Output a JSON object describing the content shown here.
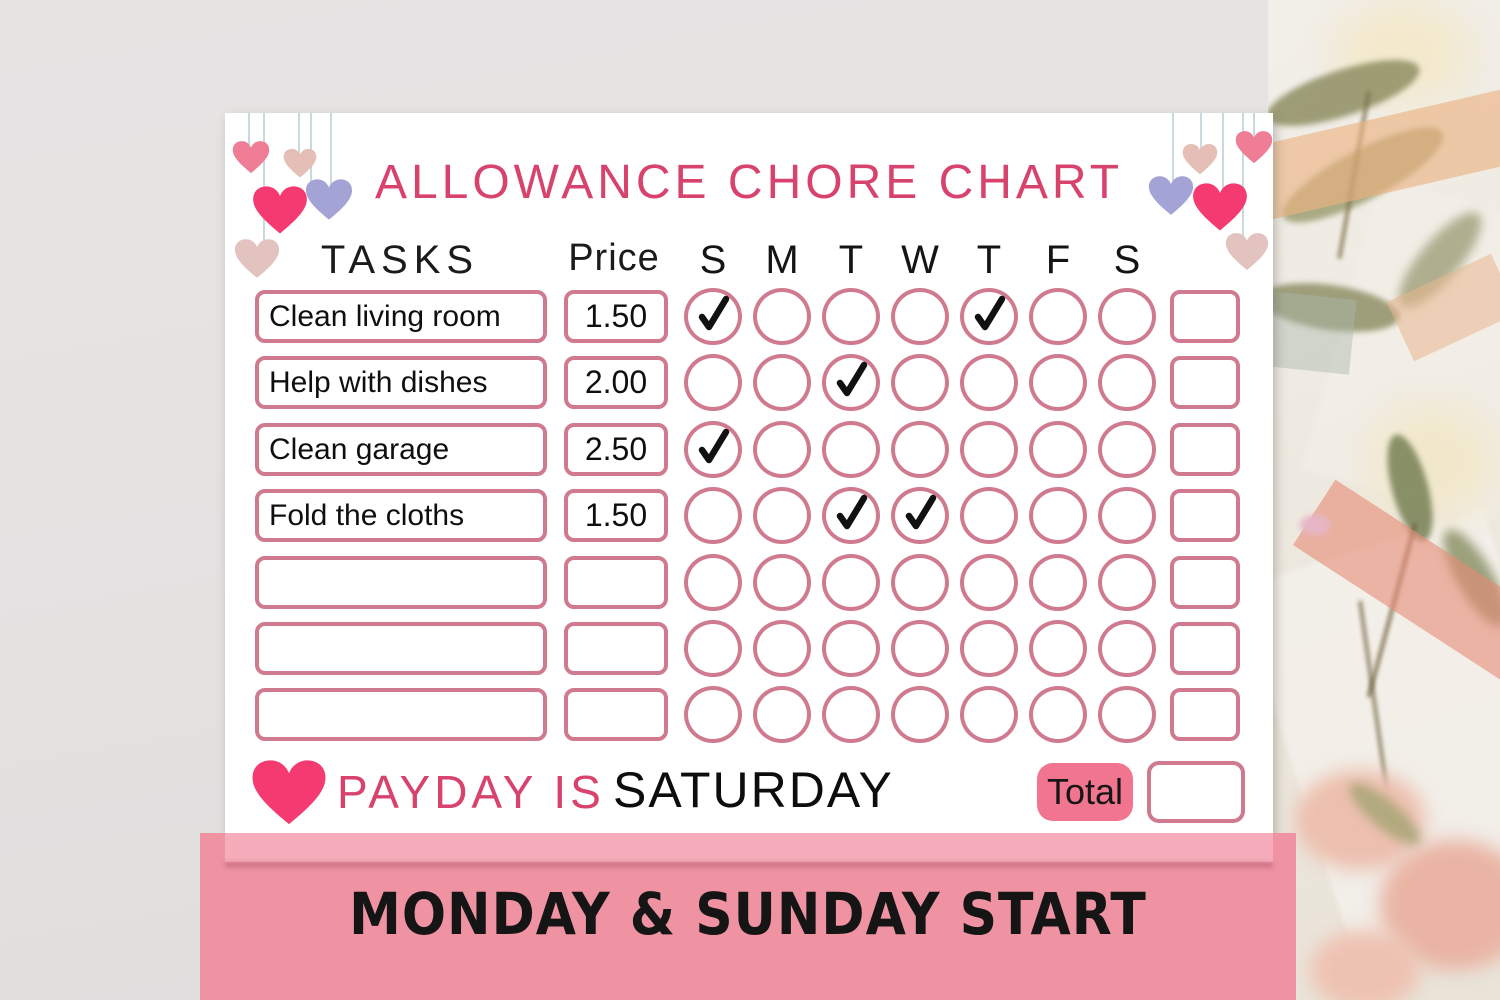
{
  "palette": {
    "accent_pink": "#D8436E",
    "border_pink": "#CF7A8E",
    "banner_pink": "#EF93A3",
    "banner_light_pink": "#F6ACBA",
    "total_button_pink": "#F2758F",
    "heart_bright": "#F43A70",
    "heart_pink": "#EE7D95",
    "heart_beige": "#E5BFB6",
    "heart_lavender": "#A3A3D6",
    "heart_dusty": "#E2C3C0",
    "background_gray": "#E4E2E1"
  },
  "chart": {
    "title": "ALLOWANCE CHORE CHART",
    "tasks_header": "TASKS",
    "price_header": "Price",
    "days": [
      "S",
      "M",
      "T",
      "W",
      "T",
      "F",
      "S"
    ],
    "check_symbol": "✓",
    "rows": [
      {
        "task": "Clean living room",
        "price": "1.50",
        "checked_days": [
          0,
          4
        ]
      },
      {
        "task": "Help with dishes",
        "price": "2.00",
        "checked_days": [
          2
        ]
      },
      {
        "task": "Clean garage",
        "price": "2.50",
        "checked_days": [
          0
        ]
      },
      {
        "task": "Fold the cloths",
        "price": "1.50",
        "checked_days": [
          2,
          3
        ]
      },
      {
        "task": "",
        "price": "",
        "checked_days": []
      },
      {
        "task": "",
        "price": "",
        "checked_days": []
      },
      {
        "task": "",
        "price": "",
        "checked_days": []
      }
    ],
    "payday": {
      "label": "PAYDAY IS",
      "value": "SATURDAY"
    },
    "total_label": "Total"
  },
  "banner": {
    "text": "MONDAY & SUNDAY START"
  }
}
